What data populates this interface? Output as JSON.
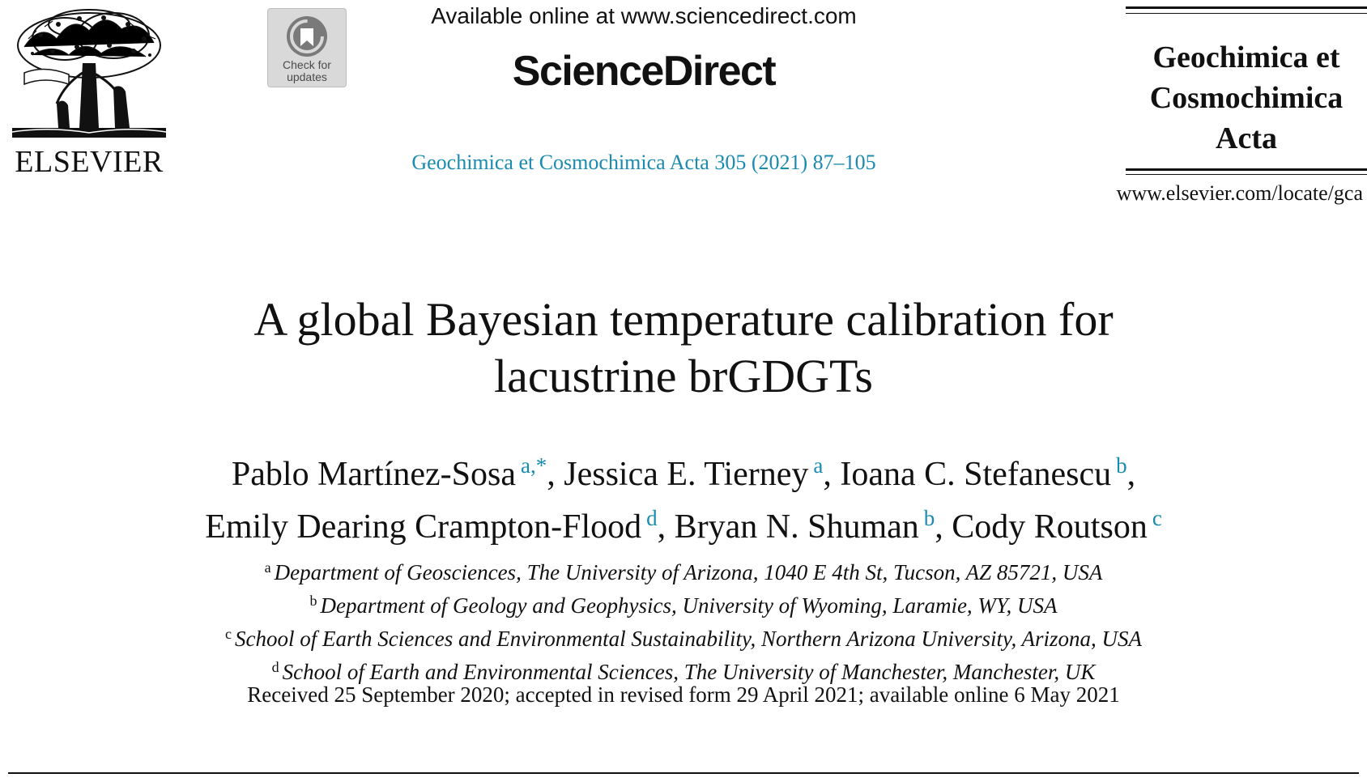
{
  "header": {
    "publisher": "ELSEVIER",
    "check_updates": [
      "Check for",
      "updates"
    ],
    "available_online": "Available online at www.sciencedirect.com",
    "platform": "ScienceDirect",
    "journal_ref": "Geochimica et Cosmochimica Acta 305 (2021) 87–105",
    "journal_name_lines": [
      "Geochimica et",
      "Cosmochimica",
      "Acta"
    ],
    "journal_url": "www.elsevier.com/locate/gca"
  },
  "article": {
    "title_lines": [
      "A global Bayesian temperature calibration for",
      "lacustrine brGDGTs"
    ],
    "authors": [
      {
        "name": "Pablo Martínez-Sosa",
        "marks": "a,*"
      },
      {
        "name": "Jessica E. Tierney",
        "marks": "a"
      },
      {
        "name": "Ioana C. Stefanescu",
        "marks": "b"
      },
      {
        "name": "Emily Dearing Crampton-Flood",
        "marks": "d"
      },
      {
        "name": "Bryan N. Shuman",
        "marks": "b"
      },
      {
        "name": "Cody Routson",
        "marks": "c"
      }
    ],
    "affiliations": [
      {
        "key": "a",
        "text": "Department of Geosciences, The University of Arizona, 1040 E 4th St, Tucson, AZ 85721, USA"
      },
      {
        "key": "b",
        "text": "Department of Geology and Geophysics, University of Wyoming, Laramie, WY, USA"
      },
      {
        "key": "c",
        "text": "School of Earth Sciences and Environmental Sustainability, Northern Arizona University, Arizona, USA"
      },
      {
        "key": "d",
        "text": "School of Earth and Environmental Sciences, The University of Manchester, Manchester, UK"
      }
    ],
    "dates": "Received 25 September 2020; accepted in revised form 29 April 2021; available online 6 May 2021"
  },
  "colors": {
    "link": "#1a8bb0",
    "text": "#111111",
    "badge_bg": "#d9d9d9"
  }
}
